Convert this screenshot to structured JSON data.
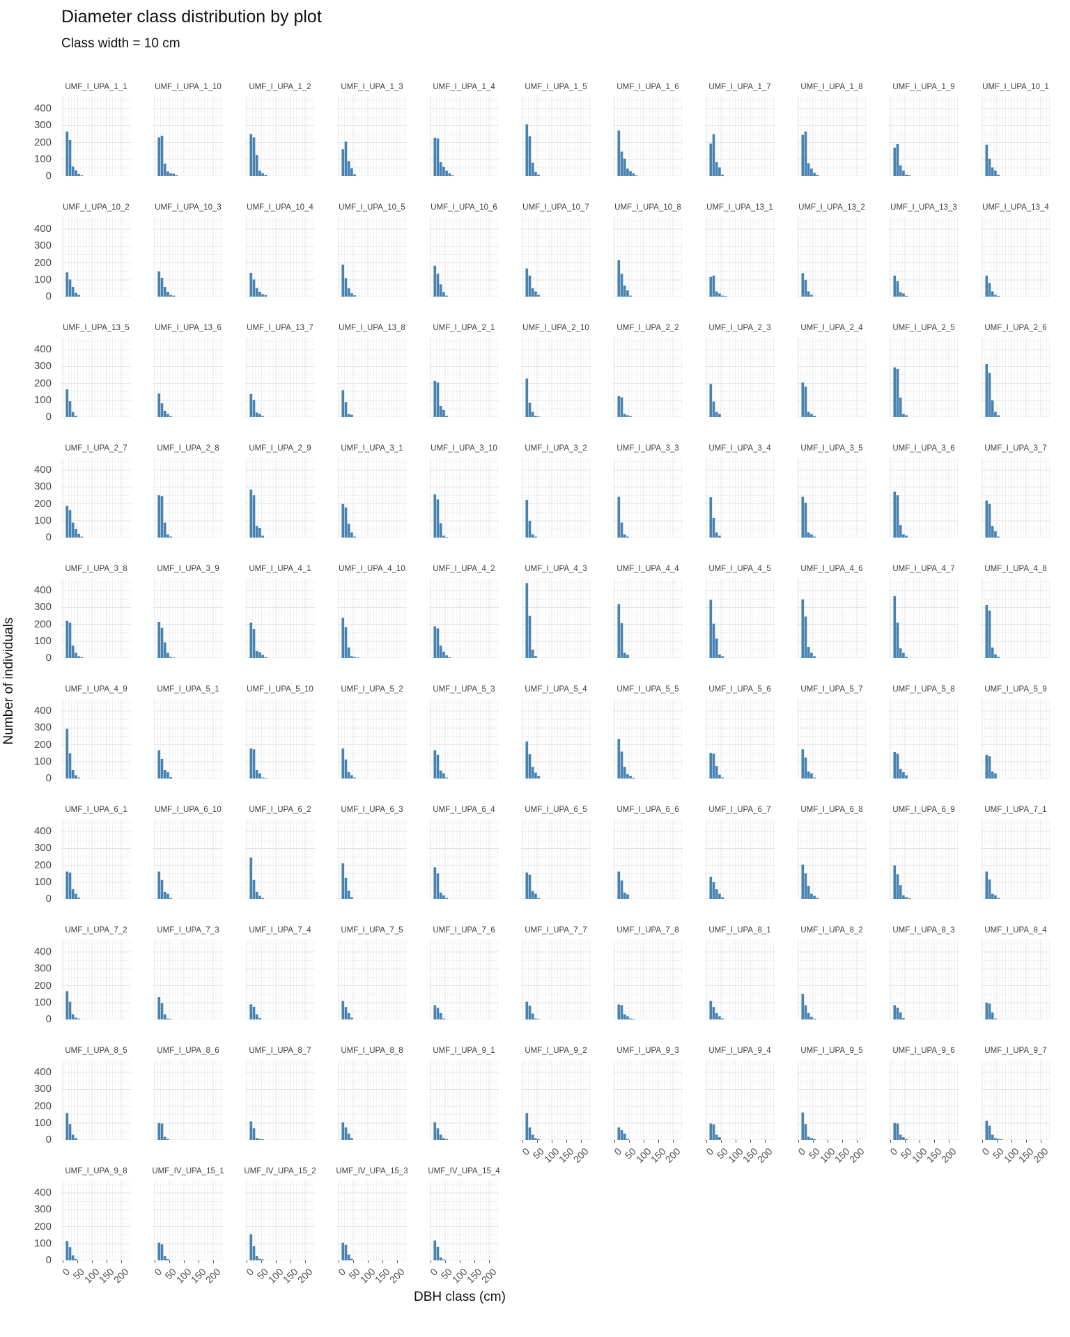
{
  "title": "Diameter class distribution by plot",
  "subtitle": "Class width = 10 cm",
  "x_axis_label": "DBH class (cm)",
  "y_axis_label": "Number of individuals",
  "colors": {
    "bar": "#4682B4",
    "grid_major": "#e3e3e3",
    "grid_minor": "#f2f2f2",
    "axis_text": "#4d4d4d",
    "strip_text": "#3d3d3d",
    "background": "#ffffff"
  },
  "chart_data": {
    "type": "bar",
    "small_multiples": true,
    "facet_columns": 11,
    "class_width_cm": 10,
    "first_class_cm": 10,
    "x_ticks": [
      "0",
      "50",
      "100",
      "150",
      "200"
    ],
    "y_ticks": [
      "400",
      "300",
      "200",
      "100",
      "0"
    ],
    "xlim": [
      0,
      235
    ],
    "ylim": [
      0,
      475
    ],
    "grid": "major+minor",
    "legend": "none",
    "panels": [
      {
        "plot": "UMF_I_UPA_1_1",
        "values": [
          265,
          215,
          57,
          35,
          13,
          6
        ]
      },
      {
        "plot": "UMF_I_UPA_1_10",
        "values": [
          230,
          240,
          75,
          28,
          17,
          15,
          6
        ]
      },
      {
        "plot": "UMF_I_UPA_1_2",
        "values": [
          250,
          230,
          125,
          33,
          18,
          8
        ]
      },
      {
        "plot": "UMF_I_UPA_1_3",
        "values": [
          160,
          205,
          90,
          47,
          11
        ]
      },
      {
        "plot": "UMF_I_UPA_1_4",
        "values": [
          228,
          224,
          83,
          56,
          33,
          17,
          6
        ]
      },
      {
        "plot": "UMF_I_UPA_1_5",
        "values": [
          308,
          237,
          80,
          25,
          9
        ]
      },
      {
        "plot": "UMF_I_UPA_1_6",
        "values": [
          271,
          146,
          104,
          45,
          30,
          17,
          5
        ]
      },
      {
        "plot": "UMF_I_UPA_1_7",
        "values": [
          193,
          249,
          83,
          52,
          9
        ]
      },
      {
        "plot": "UMF_I_UPA_1_8",
        "values": [
          245,
          265,
          77,
          45,
          20,
          8
        ]
      },
      {
        "plot": "UMF_I_UPA_1_9",
        "values": [
          169,
          190,
          64,
          33,
          9,
          6
        ]
      },
      {
        "plot": "UMF_I_UPA_10_1",
        "values": [
          187,
          104,
          52,
          33,
          9
        ]
      },
      {
        "plot": "UMF_I_UPA_10_2",
        "values": [
          144,
          102,
          58,
          22,
          10
        ]
      },
      {
        "plot": "UMF_I_UPA_10_3",
        "values": [
          150,
          112,
          58,
          29,
          10,
          6
        ]
      },
      {
        "plot": "UMF_I_UPA_10_4",
        "values": [
          141,
          102,
          51,
          29,
          15,
          10
        ]
      },
      {
        "plot": "UMF_I_UPA_10_5",
        "values": [
          190,
          110,
          50,
          20,
          8
        ]
      },
      {
        "plot": "UMF_I_UPA_10_6",
        "values": [
          183,
          136,
          73,
          27,
          6
        ]
      },
      {
        "plot": "UMF_I_UPA_10_7",
        "values": [
          167,
          125,
          50,
          31,
          11
        ]
      },
      {
        "plot": "UMF_I_UPA_10_8",
        "values": [
          217,
          136,
          66,
          37,
          6
        ]
      },
      {
        "plot": "UMF_I_UPA_13_1",
        "values": [
          117,
          125,
          31,
          19,
          6,
          4
        ]
      },
      {
        "plot": "UMF_I_UPA_13_2",
        "values": [
          139,
          100,
          31,
          11
        ]
      },
      {
        "plot": "UMF_I_UPA_13_3",
        "values": [
          125,
          92,
          27,
          19,
          5
        ]
      },
      {
        "plot": "UMF_I_UPA_13_4",
        "values": [
          125,
          81,
          31,
          11,
          4
        ]
      },
      {
        "plot": "UMF_I_UPA_13_5",
        "values": [
          165,
          94,
          30,
          8
        ]
      },
      {
        "plot": "UMF_I_UPA_13_6",
        "values": [
          140,
          82,
          38,
          19,
          6
        ]
      },
      {
        "plot": "UMF_I_UPA_13_7",
        "values": [
          137,
          102,
          27,
          19,
          6
        ]
      },
      {
        "plot": "UMF_I_UPA_13_8",
        "values": [
          160,
          89,
          19,
          14
        ]
      },
      {
        "plot": "UMF_I_UPA_2_1",
        "values": [
          215,
          205,
          66,
          42,
          8
        ]
      },
      {
        "plot": "UMF_I_UPA_2_10",
        "values": [
          229,
          85,
          31,
          8,
          4
        ]
      },
      {
        "plot": "UMF_I_UPA_2_2",
        "values": [
          125,
          118,
          19,
          11,
          6
        ]
      },
      {
        "plot": "UMF_I_UPA_2_3",
        "values": [
          196,
          93,
          31,
          19
        ]
      },
      {
        "plot": "UMF_I_UPA_2_4",
        "values": [
          205,
          180,
          31,
          19,
          8
        ]
      },
      {
        "plot": "UMF_I_UPA_2_5",
        "values": [
          295,
          285,
          116,
          19,
          11
        ]
      },
      {
        "plot": "UMF_I_UPA_2_6",
        "values": [
          314,
          262,
          100,
          31,
          11
        ]
      },
      {
        "plot": "UMF_I_UPA_2_7",
        "values": [
          188,
          163,
          89,
          50,
          22,
          6
        ]
      },
      {
        "plot": "UMF_I_UPA_2_8",
        "values": [
          251,
          246,
          89,
          19,
          6
        ]
      },
      {
        "plot": "UMF_I_UPA_2_9",
        "values": [
          285,
          251,
          69,
          58,
          11
        ]
      },
      {
        "plot": "UMF_I_UPA_3_1",
        "values": [
          199,
          179,
          82,
          31,
          6
        ]
      },
      {
        "plot": "UMF_I_UPA_3_10",
        "values": [
          257,
          226,
          85,
          11,
          4
        ]
      },
      {
        "plot": "UMF_I_UPA_3_2",
        "values": [
          223,
          100,
          19,
          6
        ]
      },
      {
        "plot": "UMF_I_UPA_3_3",
        "values": [
          242,
          89,
          19,
          6
        ]
      },
      {
        "plot": "UMF_I_UPA_3_4",
        "values": [
          239,
          116,
          31,
          11
        ]
      },
      {
        "plot": "UMF_I_UPA_3_5",
        "values": [
          242,
          207,
          31,
          19,
          6
        ]
      },
      {
        "plot": "UMF_I_UPA_3_6",
        "values": [
          273,
          251,
          74,
          19,
          11
        ]
      },
      {
        "plot": "UMF_I_UPA_3_7",
        "values": [
          220,
          199,
          69,
          38,
          6
        ]
      },
      {
        "plot": "UMF_I_UPA_3_8",
        "values": [
          220,
          210,
          74,
          31,
          11,
          6
        ]
      },
      {
        "plot": "UMF_I_UPA_3_9",
        "values": [
          215,
          179,
          93,
          31,
          6,
          3
        ]
      },
      {
        "plot": "UMF_I_UPA_4_1",
        "values": [
          210,
          173,
          42,
          35,
          19,
          6
        ]
      },
      {
        "plot": "UMF_I_UPA_4_10",
        "values": [
          239,
          184,
          63,
          11,
          6,
          3
        ]
      },
      {
        "plot": "UMF_I_UPA_4_2",
        "values": [
          188,
          176,
          74,
          38,
          16,
          5
        ]
      },
      {
        "plot": "UMF_I_UPA_4_3",
        "values": [
          445,
          250,
          50,
          12
        ]
      },
      {
        "plot": "UMF_I_UPA_4_4",
        "values": [
          320,
          207,
          31,
          19
        ]
      },
      {
        "plot": "UMF_I_UPA_4_5",
        "values": [
          345,
          204,
          116,
          22,
          11
        ]
      },
      {
        "plot": "UMF_I_UPA_4_6",
        "values": [
          348,
          246,
          66,
          31,
          11
        ]
      },
      {
        "plot": "UMF_I_UPA_4_7",
        "values": [
          367,
          210,
          58,
          31,
          8
        ]
      },
      {
        "plot": "UMF_I_UPA_4_8",
        "values": [
          314,
          282,
          63,
          22,
          8
        ]
      },
      {
        "plot": "UMF_I_UPA_4_9",
        "values": [
          295,
          150,
          50,
          19,
          6
        ]
      },
      {
        "plot": "UMF_I_UPA_5_1",
        "values": [
          168,
          116,
          50,
          38,
          8
        ]
      },
      {
        "plot": "UMF_I_UPA_5_10",
        "values": [
          179,
          173,
          50,
          31,
          6,
          4
        ]
      },
      {
        "plot": "UMF_I_UPA_5_2",
        "values": [
          179,
          113,
          38,
          19,
          6
        ]
      },
      {
        "plot": "UMF_I_UPA_5_3",
        "values": [
          168,
          141,
          47,
          31,
          6
        ]
      },
      {
        "plot": "UMF_I_UPA_5_4",
        "values": [
          220,
          144,
          69,
          35,
          16
        ]
      },
      {
        "plot": "UMF_I_UPA_5_5",
        "values": [
          235,
          160,
          69,
          27,
          16,
          5
        ]
      },
      {
        "plot": "UMF_I_UPA_5_6",
        "values": [
          152,
          147,
          74,
          22,
          6
        ]
      },
      {
        "plot": "UMF_I_UPA_5_7",
        "values": [
          173,
          125,
          42,
          31,
          6
        ]
      },
      {
        "plot": "UMF_I_UPA_5_8",
        "values": [
          157,
          147,
          58,
          38,
          19
        ]
      },
      {
        "plot": "UMF_I_UPA_5_9",
        "values": [
          141,
          132,
          42,
          31
        ]
      },
      {
        "plot": "UMF_I_UPA_6_1",
        "values": [
          163,
          157,
          58,
          31,
          8
        ]
      },
      {
        "plot": "UMF_I_UPA_6_10",
        "values": [
          163,
          113,
          42,
          31,
          6
        ]
      },
      {
        "plot": "UMF_I_UPA_6_2",
        "values": [
          246,
          113,
          42,
          19,
          6
        ]
      },
      {
        "plot": "UMF_I_UPA_6_3",
        "values": [
          212,
          125,
          50,
          11
        ]
      },
      {
        "plot": "UMF_I_UPA_6_4",
        "values": [
          188,
          152,
          38,
          22,
          6
        ]
      },
      {
        "plot": "UMF_I_UPA_6_5",
        "values": [
          157,
          144,
          47,
          31,
          6
        ]
      },
      {
        "plot": "UMF_I_UPA_6_6",
        "values": [
          163,
          110,
          38,
          27
        ]
      },
      {
        "plot": "UMF_I_UPA_6_7",
        "values": [
          132,
          100,
          58,
          31,
          11
        ]
      },
      {
        "plot": "UMF_I_UPA_6_8",
        "values": [
          204,
          152,
          78,
          31,
          19,
          6
        ]
      },
      {
        "plot": "UMF_I_UPA_6_9",
        "values": [
          199,
          147,
          82,
          22,
          11,
          5
        ]
      },
      {
        "plot": "UMF_I_UPA_7_1",
        "values": [
          163,
          116,
          31,
          22,
          6
        ]
      },
      {
        "plot": "UMF_I_UPA_7_2",
        "values": [
          168,
          105,
          31,
          11,
          5
        ]
      },
      {
        "plot": "UMF_I_UPA_7_3",
        "values": [
          132,
          97,
          31,
          6,
          4
        ]
      },
      {
        "plot": "UMF_I_UPA_7_4",
        "values": [
          90,
          75,
          31,
          8
        ]
      },
      {
        "plot": "UMF_I_UPA_7_5",
        "values": [
          110,
          74,
          38,
          11
        ]
      },
      {
        "plot": "UMF_I_UPA_7_6",
        "values": [
          85,
          69,
          38,
          6
        ]
      },
      {
        "plot": "UMF_I_UPA_7_7",
        "values": [
          105,
          82,
          35,
          6,
          4
        ]
      },
      {
        "plot": "UMF_I_UPA_7_8",
        "values": [
          89,
          85,
          31,
          19,
          6,
          4
        ]
      },
      {
        "plot": "UMF_I_UPA_8_1",
        "values": [
          110,
          74,
          38,
          19,
          6
        ]
      },
      {
        "plot": "UMF_I_UPA_8_2",
        "values": [
          152,
          85,
          38,
          16,
          5
        ]
      },
      {
        "plot": "UMF_I_UPA_8_3",
        "values": [
          85,
          70,
          42,
          8
        ]
      },
      {
        "plot": "UMF_I_UPA_8_4",
        "values": [
          100,
          94,
          42,
          6
        ]
      },
      {
        "plot": "UMF_I_UPA_8_5",
        "values": [
          160,
          94,
          31,
          11
        ]
      },
      {
        "plot": "UMF_I_UPA_8_6",
        "values": [
          100,
          97,
          19,
          6
        ]
      },
      {
        "plot": "UMF_I_UPA_8_7",
        "values": [
          110,
          69,
          11,
          6,
          4
        ]
      },
      {
        "plot": "UMF_I_UPA_8_8",
        "values": [
          105,
          74,
          38,
          11
        ]
      },
      {
        "plot": "UMF_I_UPA_9_1",
        "values": [
          105,
          69,
          31,
          11,
          5
        ]
      },
      {
        "plot": "UMF_I_UPA_9_2",
        "values": [
          160,
          74,
          31,
          11,
          5
        ]
      },
      {
        "plot": "UMF_I_UPA_9_3",
        "values": [
          74,
          58,
          38,
          6
        ]
      },
      {
        "plot": "UMF_I_UPA_9_4",
        "values": [
          97,
          93,
          31,
          16
        ]
      },
      {
        "plot": "UMF_I_UPA_9_5",
        "values": [
          163,
          94,
          19,
          11,
          5
        ]
      },
      {
        "plot": "UMF_I_UPA_9_6",
        "values": [
          100,
          97,
          31,
          16,
          5
        ]
      },
      {
        "plot": "UMF_I_UPA_9_7",
        "values": [
          113,
          85,
          31,
          11,
          6,
          4
        ]
      },
      {
        "plot": "UMF_I_UPA_9_8",
        "values": [
          115,
          78,
          30,
          8
        ]
      },
      {
        "plot": "UMF_IV_UPA_15_1",
        "values": [
          105,
          95,
          25,
          8
        ]
      },
      {
        "plot": "UMF_IV_UPA_15_2",
        "values": [
          155,
          85,
          25,
          10,
          6
        ]
      },
      {
        "plot": "UMF_IV_UPA_15_3",
        "values": [
          105,
          92,
          35,
          10
        ]
      },
      {
        "plot": "UMF_IV_UPA_15_4",
        "values": [
          118,
          80,
          18,
          6
        ]
      }
    ]
  }
}
